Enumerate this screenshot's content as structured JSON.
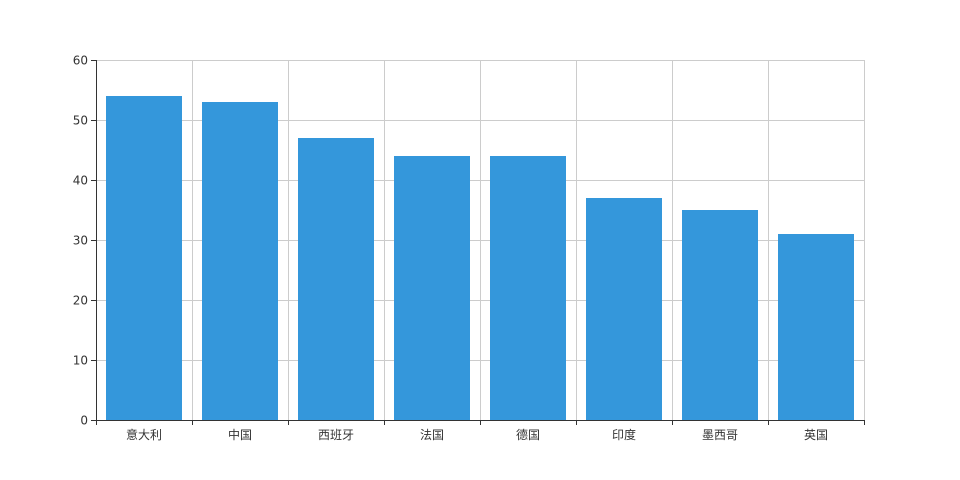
{
  "chart_data": {
    "type": "bar",
    "categories": [
      "意大利",
      "中国",
      "西班牙",
      "法国",
      "德国",
      "印度",
      "墨西哥",
      "英国"
    ],
    "values": [
      54,
      53,
      47,
      44,
      44,
      37,
      35,
      31
    ],
    "ylim": [
      0,
      60
    ],
    "yticks": [
      0,
      10,
      20,
      30,
      40,
      50,
      60
    ],
    "grid": true,
    "title": "",
    "xlabel": "",
    "ylabel": "",
    "colors": {
      "bar": "#3497db",
      "grid": "#cccccc",
      "axis": "#333333",
      "text": "#333333"
    }
  }
}
